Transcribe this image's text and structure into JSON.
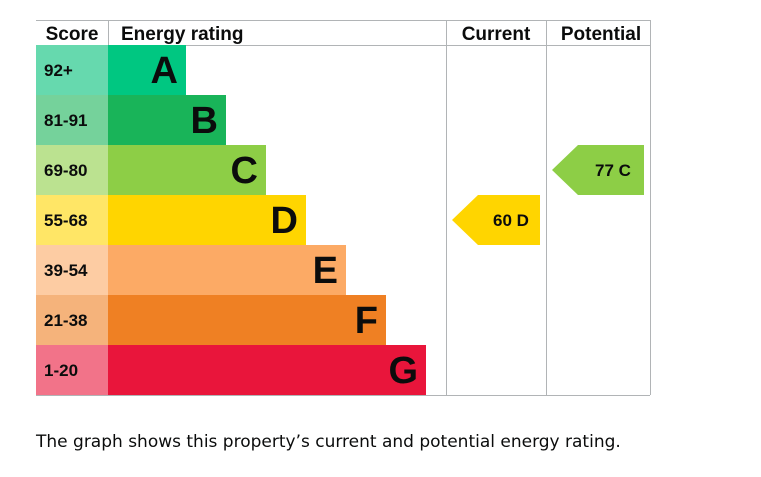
{
  "caption": "The graph shows this property’s current and potential energy rating.",
  "chart_data": {
    "type": "bar",
    "headers": {
      "score": "Score",
      "rating": "Energy rating",
      "current": "Current",
      "potential": "Potential"
    },
    "bands": [
      {
        "score": "92+",
        "letter": "A",
        "min": 92,
        "max": 100,
        "bar_color": "#00c781",
        "score_color": "#66d9ae"
      },
      {
        "score": "81-91",
        "letter": "B",
        "min": 81,
        "max": 91,
        "bar_color": "#19b459",
        "score_color": "#75d29b"
      },
      {
        "score": "69-80",
        "letter": "C",
        "min": 69,
        "max": 80,
        "bar_color": "#8dce46",
        "score_color": "#bbe290"
      },
      {
        "score": "55-68",
        "letter": "D",
        "min": 55,
        "max": 68,
        "bar_color": "#ffd500",
        "score_color": "#ffe666"
      },
      {
        "score": "39-54",
        "letter": "E",
        "min": 39,
        "max": 54,
        "bar_color": "#fcaa65",
        "score_color": "#fdcca3"
      },
      {
        "score": "21-38",
        "letter": "F",
        "min": 21,
        "max": 38,
        "bar_color": "#ef8023",
        "score_color": "#f5b37b"
      },
      {
        "score": "1-20",
        "letter": "G",
        "min": 1,
        "max": 20,
        "bar_color": "#e9153b",
        "score_color": "#f27389"
      }
    ],
    "current": {
      "value": 60,
      "letter": "D",
      "label": "60 D",
      "color": "#ffd500"
    },
    "potential": {
      "value": 77,
      "letter": "C",
      "label": "77 C",
      "color": "#8dce46"
    }
  }
}
